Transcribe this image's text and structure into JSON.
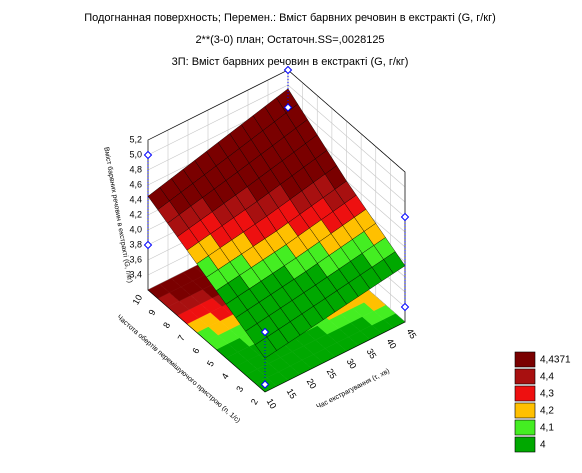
{
  "chart_data": {
    "type": "surface3d",
    "title": "Подогнанная поверхность; Перемен.: Вміст барвних речовин в екстракті (G, г/кг)",
    "subtitle": "2**(3-0) план; Остаточн.SS=,0028125",
    "subtitle2": "3П: Вміст барвних речовин в екстракті (G, г/кг)",
    "xlabel": "Частота обертів перемішуючого пристрою (n, 1/с)",
    "ylabel": "Час екстрагування (τ, хв)",
    "zlabel": "Вміст барвних речовин в екстракті (G, г/кг)",
    "x": [
      2,
      6,
      10
    ],
    "y": [
      10,
      27.5,
      45
    ],
    "z": [
      [
        3.65,
        3.8,
        3.95
      ],
      [
        4.05,
        4.2,
        4.4
      ],
      [
        4.45,
        4.7,
        4.95
      ]
    ],
    "points": {
      "x": [
        10,
        10,
        10,
        10,
        2,
        2,
        2,
        2
      ],
      "y": [
        10,
        10,
        45,
        45,
        45,
        45,
        10,
        10
      ],
      "z": [
        5.0,
        3.8,
        5.2,
        4.7,
        4.6,
        3.4,
        4.0,
        3.3
      ],
      "color": "#0000ff"
    },
    "xlim": [
      2,
      10
    ],
    "ylim": [
      10,
      45
    ],
    "zlim": [
      3.2,
      5.2
    ],
    "xticks": [
      2,
      3,
      4,
      5,
      6,
      7,
      8,
      9,
      10
    ],
    "yticks": [
      10,
      15,
      20,
      25,
      30,
      35,
      40,
      45
    ],
    "zticks": [
      {
        "value": 3.4,
        "label": "3,4"
      },
      {
        "value": 3.6,
        "label": "3,6"
      },
      {
        "value": 3.8,
        "label": "3,8"
      },
      {
        "value": 4.0,
        "label": "4,0"
      },
      {
        "value": 4.2,
        "label": "4,2"
      },
      {
        "value": 4.4,
        "label": "4,4"
      },
      {
        "value": 4.6,
        "label": "4,6"
      },
      {
        "value": 4.8,
        "label": "4,8"
      },
      {
        "value": 5.0,
        "label": "5,0"
      },
      {
        "value": 5.2,
        "label": "5,2"
      }
    ],
    "legend": [
      {
        "value": 4.4371,
        "label": "4,4371",
        "color": "#7a0000"
      },
      {
        "value": 4.4,
        "label": "4,4",
        "color": "#a81010"
      },
      {
        "value": 4.3,
        "label": "4,3",
        "color": "#ee1010"
      },
      {
        "value": 4.2,
        "label": "4,2",
        "color": "#ffc000"
      },
      {
        "value": 4.1,
        "label": "4,1",
        "color": "#44ee22"
      },
      {
        "value": 4,
        "label": "4",
        "color": "#00a800"
      }
    ],
    "grid": true
  }
}
